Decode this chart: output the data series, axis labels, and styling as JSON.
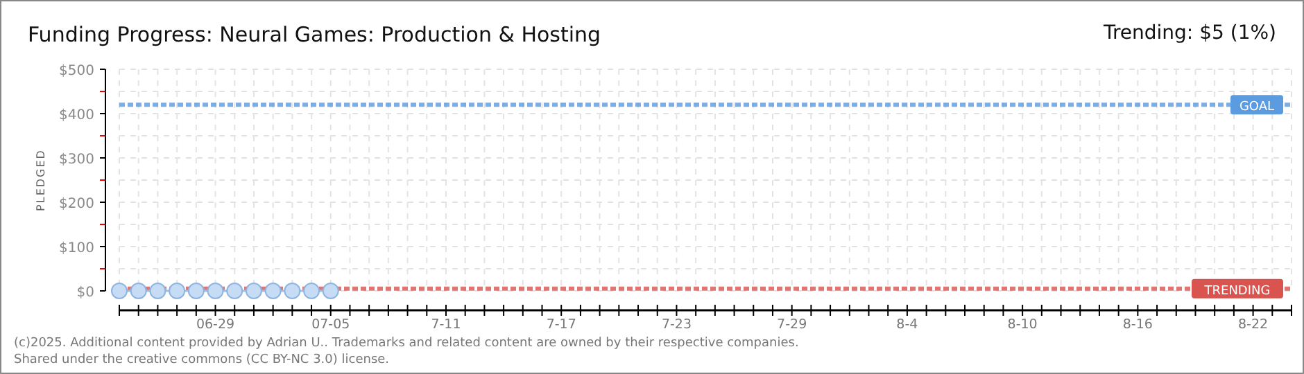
{
  "chart_data": {
    "type": "line",
    "title": "Funding Progress: Neural Games: Production & Hosting",
    "subtitle": "Trending: $5 (1%)",
    "ylabel": "PLEDGED",
    "annotations": [
      "(c)2025. Additional content provided by Adrian U.. Trademarks and related content are owned by their respective companies.",
      "Shared under the creative commons (CC BY-NC 3.0) license."
    ],
    "x": [
      "2025-06-24",
      "2025-06-25",
      "2025-06-26",
      "2025-06-27",
      "2025-06-28",
      "2025-06-29",
      "2025-06-30",
      "2025-07-01",
      "2025-07-02",
      "2025-07-03",
      "2025-07-04",
      "2025-07-05"
    ],
    "series": [
      {
        "color": "#c6dcf5",
        "values": [
          0,
          0,
          0,
          0,
          0,
          0,
          0,
          0,
          0,
          0,
          0,
          0
        ]
      }
    ],
    "marker": "circle",
    "grid": true,
    "ylim": [
      0,
      500
    ],
    "yticks": [
      {
        "value": 0,
        "label": "$0"
      },
      {
        "value": 50,
        "label": null
      },
      {
        "value": 100,
        "label": "$100"
      },
      {
        "value": 150,
        "label": null
      },
      {
        "value": 200,
        "label": "$200"
      },
      {
        "value": 250,
        "label": null
      },
      {
        "value": 300,
        "label": "$300"
      },
      {
        "value": 350,
        "label": null
      },
      {
        "value": 400,
        "label": "$400"
      },
      {
        "value": 450,
        "label": null
      },
      {
        "value": 500,
        "label": "$500"
      }
    ],
    "xlim": [
      "2025-06-24",
      "2025-08-24"
    ],
    "xticks": [
      {
        "value": "2025-06-24",
        "label": null
      },
      {
        "value": "2025-06-25",
        "label": null
      },
      {
        "value": "2025-06-26",
        "label": null
      },
      {
        "value": "2025-06-27",
        "label": null
      },
      {
        "value": "2025-06-28",
        "label": null
      },
      {
        "value": "2025-06-29",
        "label": "06-29"
      },
      {
        "value": "2025-06-30",
        "label": null
      },
      {
        "value": "2025-07-01",
        "label": null
      },
      {
        "value": "2025-07-02",
        "label": null
      },
      {
        "value": "2025-07-03",
        "label": null
      },
      {
        "value": "2025-07-04",
        "label": null
      },
      {
        "value": "2025-07-05",
        "label": "07-05"
      },
      {
        "value": "2025-07-06",
        "label": null
      },
      {
        "value": "2025-07-07",
        "label": null
      },
      {
        "value": "2025-07-08",
        "label": null
      },
      {
        "value": "2025-07-09",
        "label": null
      },
      {
        "value": "2025-07-10",
        "label": null
      },
      {
        "value": "2025-07-11",
        "label": "7-11"
      },
      {
        "value": "2025-07-12",
        "label": null
      },
      {
        "value": "2025-07-13",
        "label": null
      },
      {
        "value": "2025-07-14",
        "label": null
      },
      {
        "value": "2025-07-15",
        "label": null
      },
      {
        "value": "2025-07-16",
        "label": null
      },
      {
        "value": "2025-07-17",
        "label": "7-17"
      },
      {
        "value": "2025-07-18",
        "label": null
      },
      {
        "value": "2025-07-19",
        "label": null
      },
      {
        "value": "2025-07-20",
        "label": null
      },
      {
        "value": "2025-07-21",
        "label": null
      },
      {
        "value": "2025-07-22",
        "label": null
      },
      {
        "value": "2025-07-23",
        "label": "7-23"
      },
      {
        "value": "2025-07-24",
        "label": null
      },
      {
        "value": "2025-07-25",
        "label": null
      },
      {
        "value": "2025-07-26",
        "label": null
      },
      {
        "value": "2025-07-27",
        "label": null
      },
      {
        "value": "2025-07-28",
        "label": null
      },
      {
        "value": "2025-07-29",
        "label": "7-29"
      },
      {
        "value": "2025-07-30",
        "label": null
      },
      {
        "value": "2025-07-31",
        "label": null
      },
      {
        "value": "2025-08-01",
        "label": null
      },
      {
        "value": "2025-08-02",
        "label": null
      },
      {
        "value": "2025-08-03",
        "label": null
      },
      {
        "value": "2025-08-04",
        "label": "8-4"
      },
      {
        "value": "2025-08-05",
        "label": null
      },
      {
        "value": "2025-08-06",
        "label": null
      },
      {
        "value": "2025-08-07",
        "label": null
      },
      {
        "value": "2025-08-08",
        "label": null
      },
      {
        "value": "2025-08-09",
        "label": null
      },
      {
        "value": "2025-08-10",
        "label": "8-10"
      },
      {
        "value": "2025-08-11",
        "label": null
      },
      {
        "value": "2025-08-12",
        "label": null
      },
      {
        "value": "2025-08-13",
        "label": null
      },
      {
        "value": "2025-08-14",
        "label": null
      },
      {
        "value": "2025-08-15",
        "label": null
      },
      {
        "value": "2025-08-16",
        "label": "8-16"
      },
      {
        "value": "2025-08-17",
        "label": null
      },
      {
        "value": "2025-08-18",
        "label": null
      },
      {
        "value": "2025-08-19",
        "label": null
      },
      {
        "value": "2025-08-20",
        "label": null
      },
      {
        "value": "2025-08-21",
        "label": null
      },
      {
        "value": "2025-08-22",
        "label": "8-22"
      },
      {
        "value": "2025-08-23",
        "label": null
      },
      {
        "value": "2025-08-24",
        "label": null
      }
    ],
    "ref_lines": [
      {
        "axis": "y",
        "value": 420,
        "label": "GOAL",
        "color": "#5b9be0",
        "line_style": "dashed"
      },
      {
        "axis": "y",
        "value": 5,
        "label": "TRENDING",
        "color": "#d9534f",
        "line_style": "dashed"
      }
    ]
  }
}
